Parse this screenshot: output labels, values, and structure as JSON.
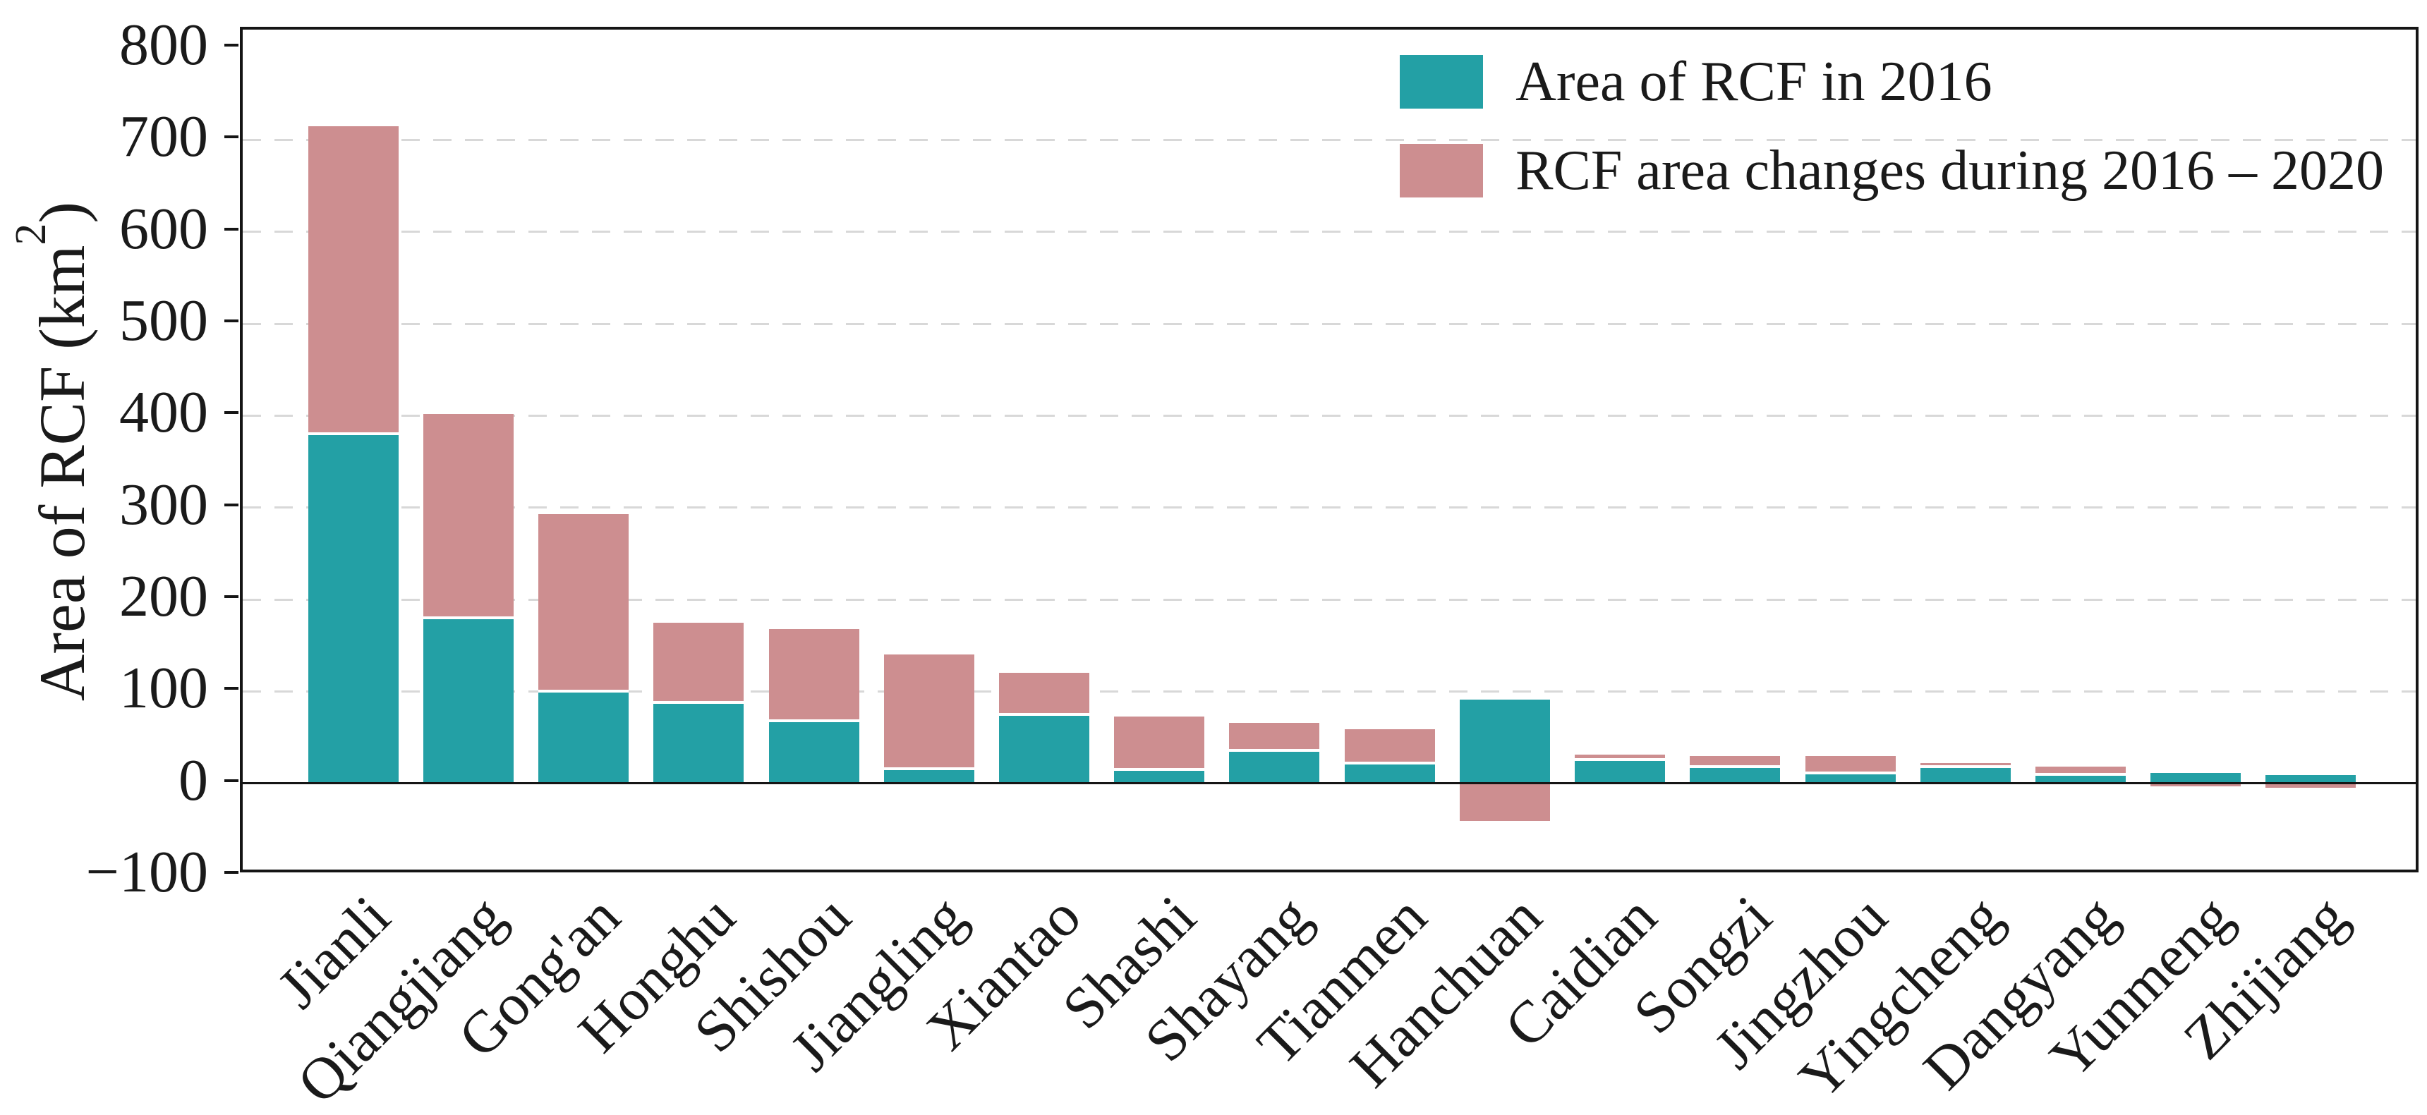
{
  "chart_data": {
    "type": "bar",
    "stacked": true,
    "title": "",
    "ylabel": {
      "prefix": "Area of RCF (km",
      "sup": "2",
      "suffix": ")"
    },
    "categories": [
      "Jianli",
      "Qiangjiang",
      "Gong'an",
      "Honghu",
      "Shishou",
      "Jiangling",
      "Xiantao",
      "Shashi",
      "Shayang",
      "Tianmen",
      "Hanchuan",
      "Caidian",
      "Songzi",
      "Jingzhou",
      "Yingcheng",
      "Dangyang",
      "Yunmeng",
      "Zhijiang"
    ],
    "series": [
      {
        "name": "Area of RCF in 2016",
        "color": "#23a0a5",
        "values": [
          380,
          180,
          100,
          88,
          68,
          16,
          75,
          15,
          36,
          22,
          91,
          26,
          18,
          11,
          18,
          10,
          11,
          9
        ]
      },
      {
        "name": "RCF area changes during 2016 – 2020",
        "color": "#cd8e90",
        "values": [
          335,
          222,
          193,
          87,
          100,
          124,
          45,
          58,
          30,
          37,
          -41,
          5,
          12,
          19,
          4,
          8,
          -3,
          -5
        ]
      }
    ],
    "ylim": [
      -100,
      820
    ],
    "yticks": [
      {
        "v": 800,
        "label": "800"
      },
      {
        "v": 700,
        "label": "700"
      },
      {
        "v": 600,
        "label": "600"
      },
      {
        "v": 500,
        "label": "500"
      },
      {
        "v": 400,
        "label": "400"
      },
      {
        "v": 300,
        "label": "300"
      },
      {
        "v": 200,
        "label": "200"
      },
      {
        "v": 100,
        "label": "100"
      },
      {
        "v": 0,
        "label": "0"
      },
      {
        "v": -100,
        "label": "−100"
      }
    ],
    "grid_values": [
      0,
      100,
      200,
      300,
      400,
      500,
      600,
      700
    ],
    "grid": "horizontal dashed",
    "legend_position": "top-right",
    "xlabel": ""
  }
}
